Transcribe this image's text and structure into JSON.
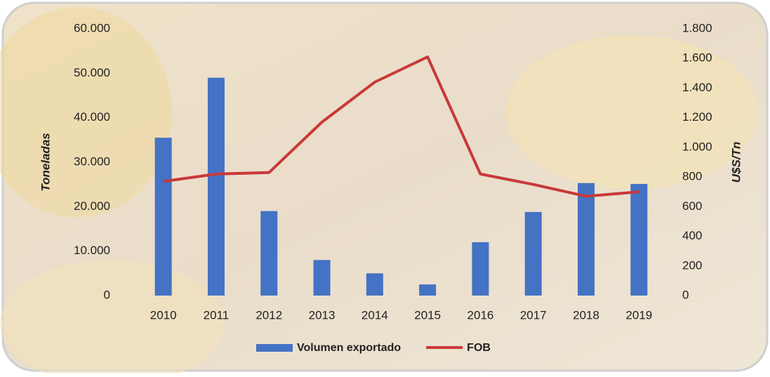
{
  "chart_data": {
    "type": "bar-line",
    "categories": [
      "2010",
      "2011",
      "2012",
      "2013",
      "2014",
      "2015",
      "2016",
      "2017",
      "2018",
      "2019"
    ],
    "series": [
      {
        "name": "Volumen exportado",
        "type": "bar",
        "color": "#4472c4",
        "values": [
          35500,
          49000,
          19000,
          8000,
          5000,
          2500,
          12000,
          18800,
          25300,
          25100
        ]
      },
      {
        "name": "FOB",
        "type": "line",
        "axis": "y2",
        "color": "#c9393a",
        "values": [
          770,
          820,
          830,
          1170,
          1440,
          1610,
          820,
          750,
          670,
          700
        ]
      }
    ],
    "ylabel": "Toneladas",
    "y2label": "U$S/Tn",
    "ylim": [
      0,
      60000
    ],
    "yticks": [
      0,
      {
        "value": 10000,
        "label": "10.000"
      },
      {
        "value": 20000,
        "label": "20.000"
      },
      {
        "value": 30000,
        "label": "30.000"
      },
      {
        "value": 40000,
        "label": "40.000"
      },
      {
        "value": 50000,
        "label": "50.000"
      },
      {
        "value": 60000,
        "label": "60.000"
      }
    ],
    "y2lim": [
      0,
      1800
    ],
    "y2ticks": [
      0,
      200,
      400,
      600,
      800,
      {
        "value": 1000,
        "label": "1.000"
      },
      {
        "value": 1200,
        "label": "1.200"
      },
      {
        "value": 1400,
        "label": "1.400"
      },
      {
        "value": 1600,
        "label": "1.600"
      },
      {
        "value": 1800,
        "label": "1.800"
      }
    ],
    "legend": "bottom",
    "grid": false
  }
}
